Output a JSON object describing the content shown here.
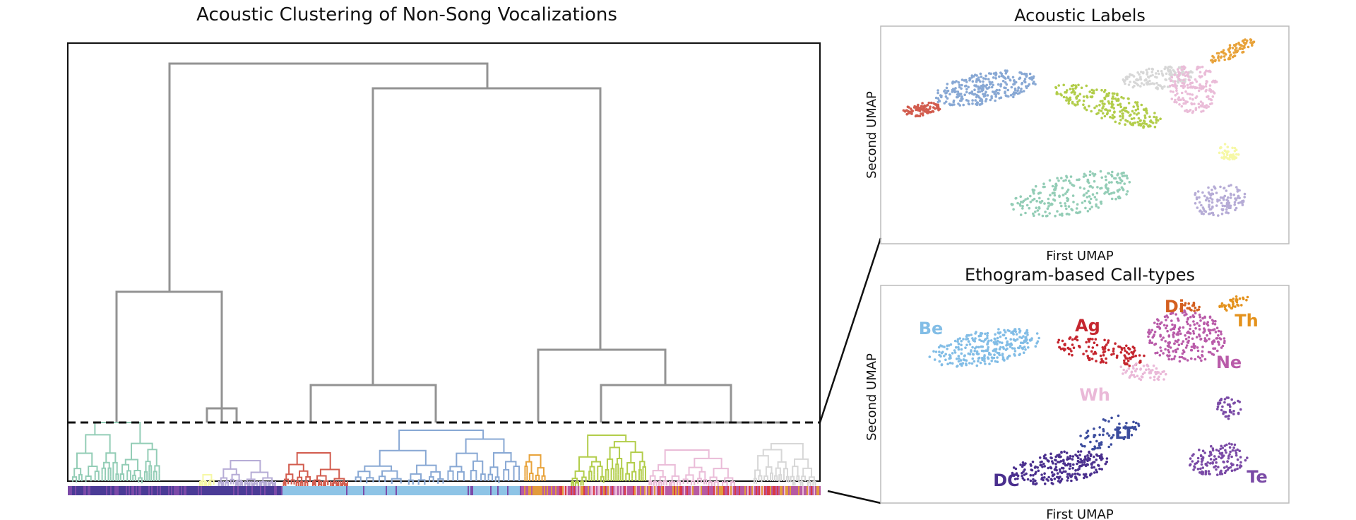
{
  "chart_data": [
    {
      "type": "dendrogram",
      "title": "Acoustic Clustering of Non-Song Vocalizations",
      "cut_line": "dashed",
      "colors": {
        "link_above_cut": "#939393",
        "clusters": [
          "#93cdb6",
          "#f6f8a6",
          "#b6acd6",
          "#d25c4e",
          "#88a8d4",
          "#e8a33b",
          "#b2cd4a",
          "#eabcd8",
          "#d7d7d7"
        ]
      },
      "color_strip": [
        "#4a3b96",
        "#7b4aa8",
        "#8ec4e6",
        "#e29b3c",
        "#b75aa3",
        "#d93a45",
        "#eab9d6"
      ]
    },
    {
      "type": "scatter",
      "title": "Acoustic Labels",
      "xlabel": "First UMAP",
      "ylabel": "Second UMAP",
      "series": [
        {
          "color": "#d25c4e"
        },
        {
          "color": "#88a8d4"
        },
        {
          "color": "#b2cd4a"
        },
        {
          "color": "#d7d7d7"
        },
        {
          "color": "#eabcd8"
        },
        {
          "color": "#e8a33b"
        },
        {
          "color": "#f6f8a6"
        },
        {
          "color": "#93cdb6"
        },
        {
          "color": "#b6acd6"
        }
      ]
    },
    {
      "type": "scatter",
      "title": "Ethogram-based Call-types",
      "xlabel": "First UMAP",
      "ylabel": "Second UMAP",
      "series": [
        {
          "name": "Be",
          "color": "#82bde6"
        },
        {
          "name": "Ag",
          "color": "#c5262f"
        },
        {
          "name": "Di",
          "color": "#d45f1f"
        },
        {
          "name": "Th",
          "color": "#e4921d"
        },
        {
          "name": "Ne",
          "color": "#b95ba9"
        },
        {
          "name": "Wh",
          "color": "#eab9d8"
        },
        {
          "name": "LT",
          "color": "#3c4d9e"
        },
        {
          "name": "DC",
          "color": "#4a2f8e"
        },
        {
          "name": "Te",
          "color": "#7a4aa6"
        }
      ]
    }
  ]
}
